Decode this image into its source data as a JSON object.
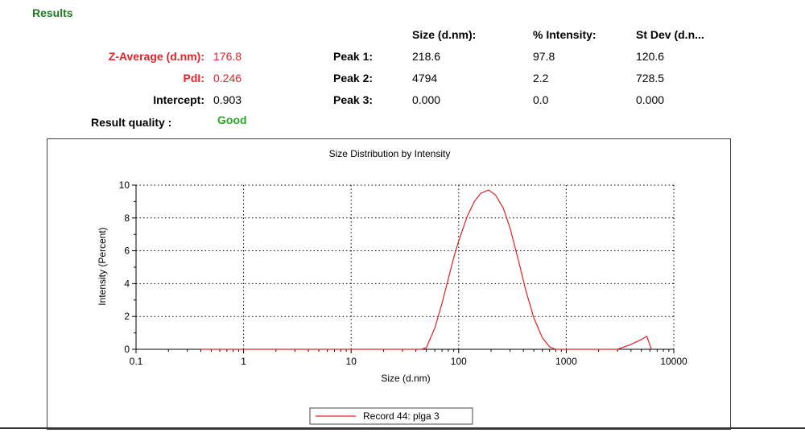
{
  "results": {
    "title": "Results",
    "z_average_label": "Z-Average (d.nm):",
    "z_average_value": "176.8",
    "pdi_label": "PdI:",
    "pdi_value": "0.246",
    "intercept_label": "Intercept:",
    "intercept_value": "0.903",
    "quality_label": "Result quality :",
    "quality_value": "Good"
  },
  "peaks": {
    "headers": [
      "Size (d.nm):",
      "% Intensity:",
      "St Dev (d.n..."
    ],
    "rows": [
      {
        "label": "Peak 1:",
        "size": "218.6",
        "intensity": "97.8",
        "stdev": "120.6"
      },
      {
        "label": "Peak 2:",
        "size": "4794",
        "intensity": "2.2",
        "stdev": "728.5"
      },
      {
        "label": "Peak 3:",
        "size": "0.000",
        "intensity": "0.0",
        "stdev": "0.000"
      }
    ]
  },
  "colors": {
    "series": "#e8202a",
    "title_green": "#1f7a1f",
    "quality_green": "#2aa52a",
    "highlight_red": "#e8202a"
  },
  "chart_data": {
    "type": "line",
    "title": "Size Distribution by Intensity",
    "xlabel": "Size (d.nm)",
    "ylabel": "Intensity (Percent)",
    "xscale": "log",
    "xlim": [
      0.1,
      10000
    ],
    "ylim": [
      0,
      10
    ],
    "xticks": [
      "0.1",
      "1",
      "10",
      "100",
      "1000",
      "10000"
    ],
    "yticks": [
      "0",
      "2",
      "4",
      "6",
      "8",
      "10"
    ],
    "grid": true,
    "legend_position": "bottom-center",
    "series": [
      {
        "name": "Record 44: plga 3",
        "x": [
          0.4,
          1,
          10,
          45,
          50,
          60,
          70,
          80,
          90,
          100,
          120,
          140,
          160,
          190,
          220,
          260,
          300,
          360,
          420,
          500,
          600,
          700,
          800,
          1000,
          2000,
          3000,
          4000,
          5000,
          5600,
          6200
        ],
        "y": [
          0,
          0,
          0,
          0,
          0.1,
          1.3,
          2.8,
          4.3,
          5.6,
          6.6,
          8.1,
          9.0,
          9.5,
          9.7,
          9.4,
          8.6,
          7.4,
          5.4,
          3.6,
          1.9,
          0.7,
          0.15,
          0,
          0,
          0,
          0,
          0.3,
          0.6,
          0.8,
          0
        ]
      }
    ]
  }
}
